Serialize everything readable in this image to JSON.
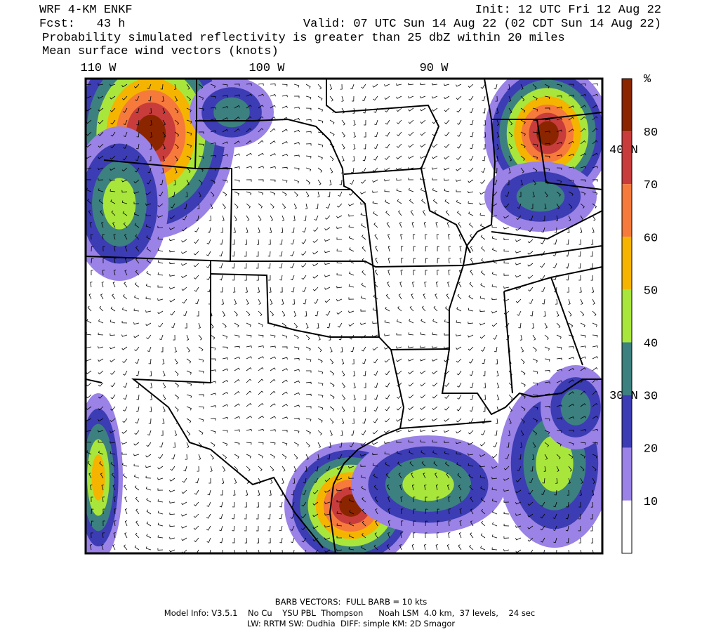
{
  "header": {
    "model": "WRF 4-KM ENKF",
    "init": "Init: 12 UTC Fri 12 Aug 22",
    "fcst": "Fcst:   43 h",
    "valid": "Valid: 07 UTC Sun 14 Aug 22 (02 CDT Sun 14 Aug 22)",
    "field": "Probability simulated reflectivity is greater than 25 dbZ within 20 miles",
    "wind": "Mean surface wind vectors (knots)"
  },
  "map": {
    "lon_labels": [
      "110 W",
      "100 W",
      "90 W"
    ],
    "lat_labels": [
      "40 N",
      "30 N"
    ]
  },
  "colorbar": {
    "unit": "%",
    "labels": [
      "80",
      "70",
      "60",
      "50",
      "40",
      "30",
      "20",
      "10"
    ],
    "colors": [
      "#8b2500",
      "#c83c3c",
      "#f57a3c",
      "#f5b400",
      "#a8e63c",
      "#3c8080",
      "#3c3cb4",
      "#9a82e6",
      "#ffffff"
    ]
  },
  "footer": {
    "barb": "BARB VECTORS:  FULL BARB = 10 kts",
    "model_info": "Model Info: V3.5.1    No Cu    YSU PBL  Thompson      Noah LSM  4.0 km,  37 levels,    24 sec",
    "physics": "LW: RRTM SW: Dudhia  DIFF: simple KM: 2D Smagor"
  }
}
